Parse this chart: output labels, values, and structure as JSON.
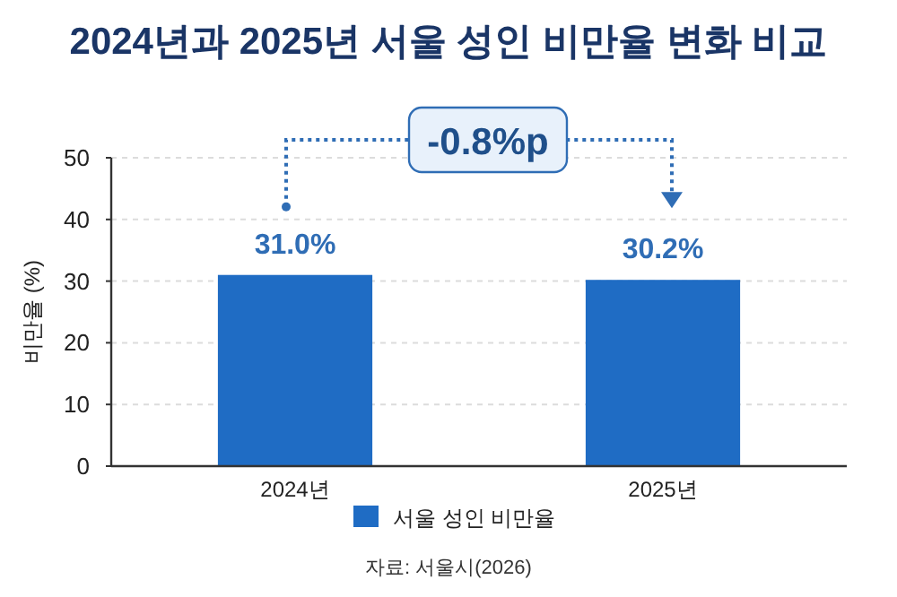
{
  "chart_data": {
    "type": "bar",
    "title": "2024년과 2025년 서울 성인 비만율 변화 비교",
    "ylabel": "비만율 (%)",
    "categories": [
      "2024년",
      "2025년"
    ],
    "series": [
      {
        "name": "서울 성인 비만율",
        "color": "#1f6cc4",
        "values": [
          31.0,
          30.2
        ],
        "value_labels": [
          "31.0%",
          "30.2%"
        ]
      }
    ],
    "ylim": [
      0,
      50
    ],
    "yticks": [
      0,
      10,
      20,
      30,
      40,
      50
    ],
    "grid": "y",
    "legend": "bottom",
    "annotations": [
      "-0.8%p",
      "자료: 서울시(2026)"
    ]
  }
}
